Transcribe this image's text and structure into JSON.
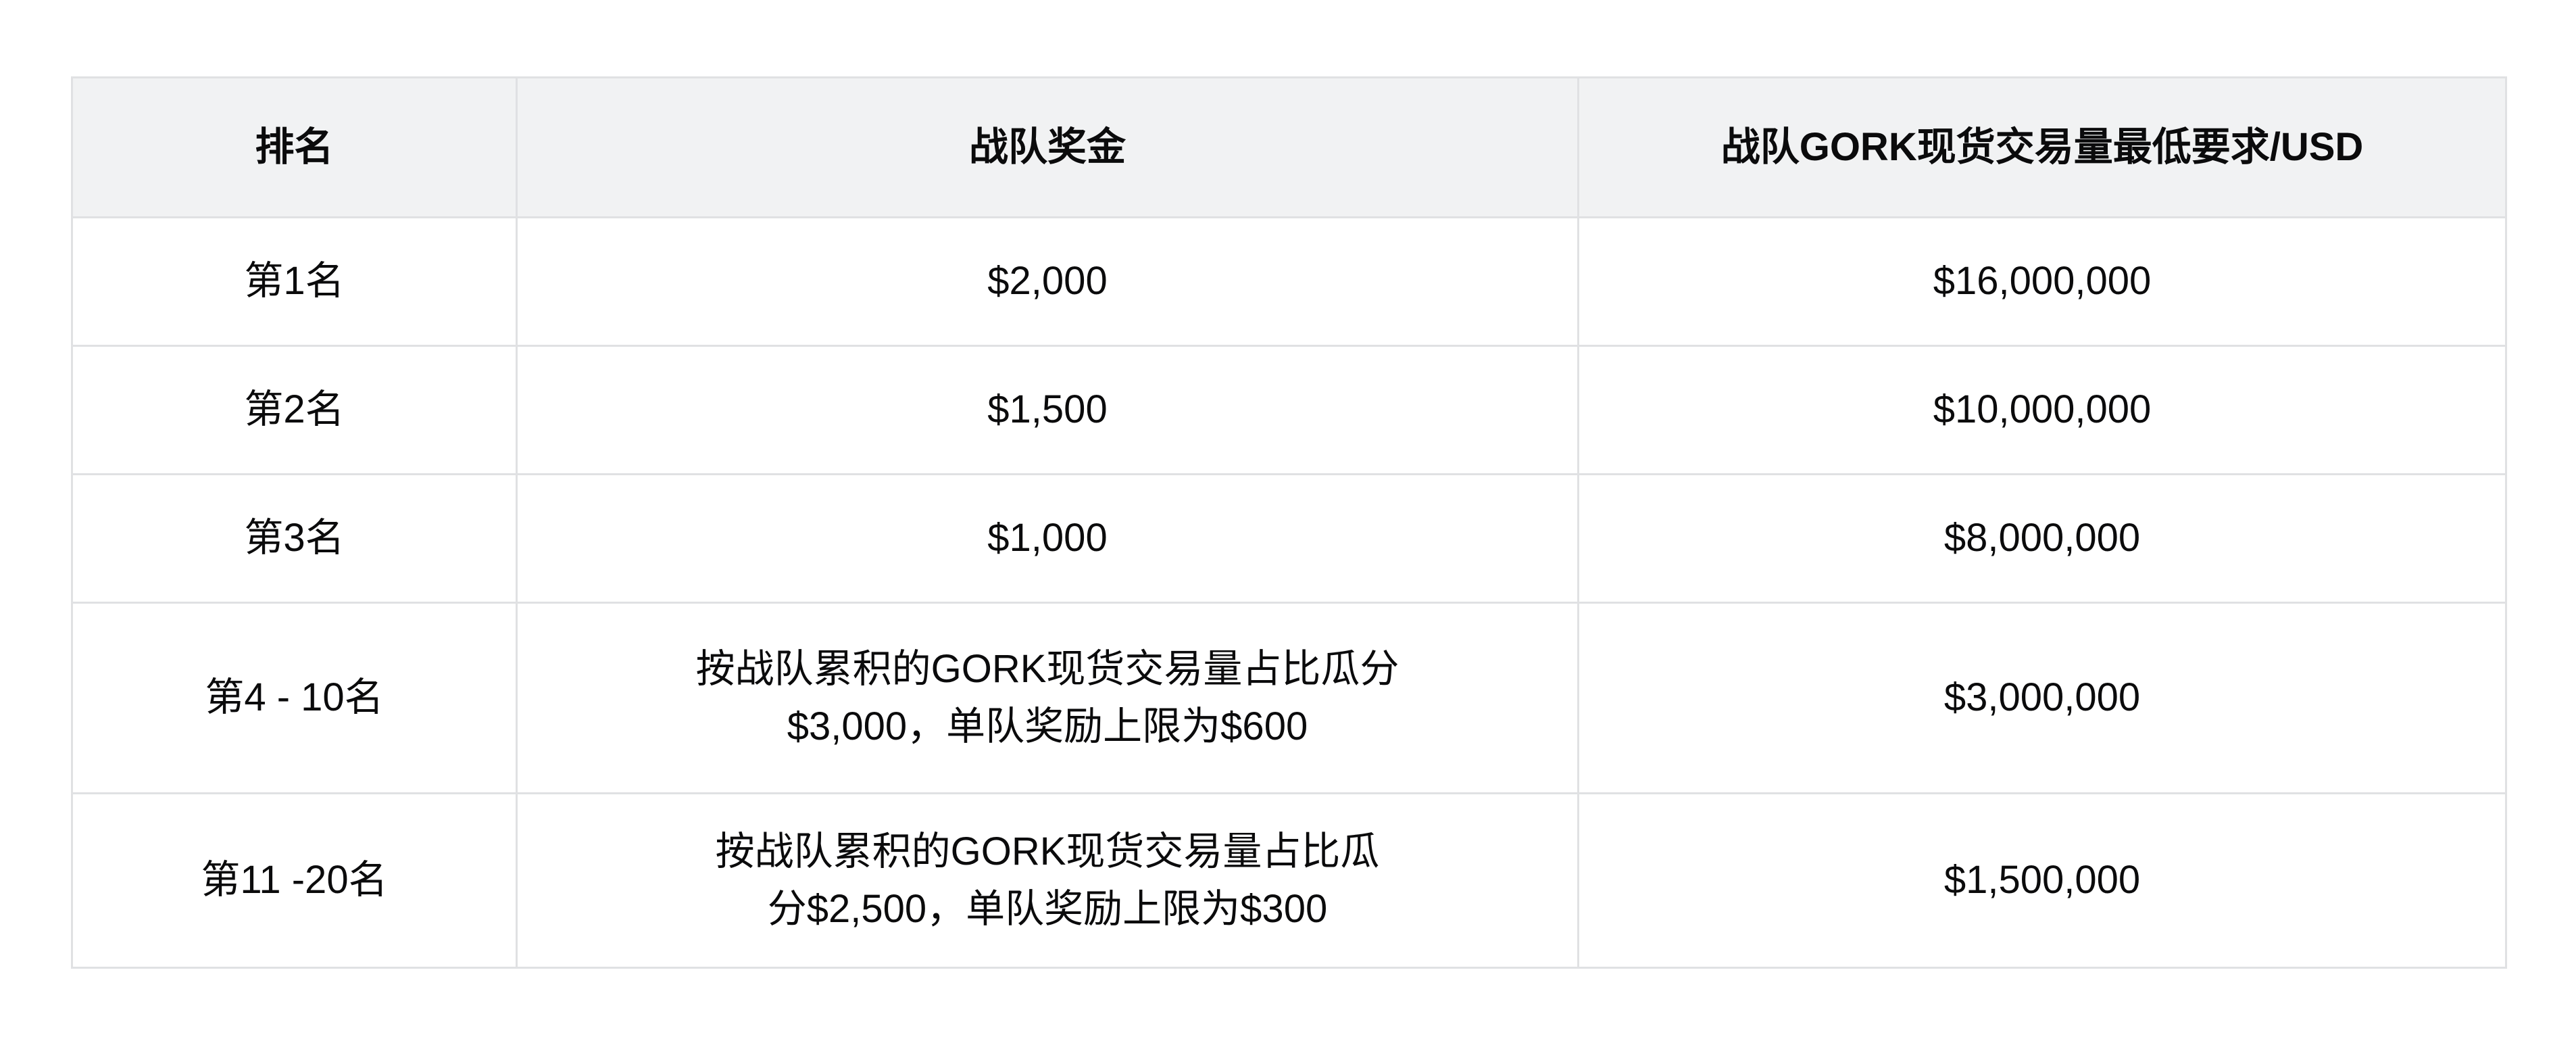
{
  "table": {
    "columns": {
      "rank": "排名",
      "prize": "战队奖金",
      "volume": "战队GORK现货交易量最低要求/USD"
    },
    "rows": [
      {
        "rank": "第1名",
        "prize": "$2,000",
        "volume": "$16,000,000"
      },
      {
        "rank": "第2名",
        "prize": "$1,500",
        "volume": "$10,000,000"
      },
      {
        "rank": "第3名",
        "prize": "$1,000",
        "volume": "$8,000,000"
      },
      {
        "rank": "第4 - 10名",
        "prize": "按战队累积的GORK现货交易量占比瓜分\n$3,000，单队奖励上限为$600",
        "volume": "$3,000,000"
      },
      {
        "rank": "第11 -20名",
        "prize": "按战队累积的GORK现货交易量占比瓜\n分$2,500，单队奖励上限为$300",
        "volume": "$1,500,000"
      }
    ],
    "colors": {
      "header_bg": "#f1f2f3",
      "border": "#e0e1e3",
      "text": "#0b0b0c",
      "page_bg": "#ffffff"
    }
  }
}
